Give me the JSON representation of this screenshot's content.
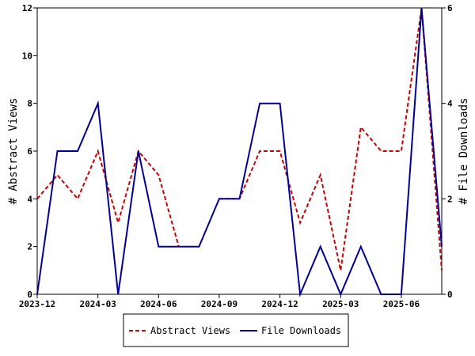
{
  "chart_data": {
    "type": "line",
    "x": [
      "2023-12",
      "2024-01",
      "2024-02",
      "2024-03",
      "2024-04",
      "2024-05",
      "2024-06",
      "2024-07",
      "2024-08",
      "2024-09",
      "2024-10",
      "2024-11",
      "2024-12",
      "2025-01",
      "2025-02",
      "2025-03",
      "2025-04",
      "2025-05",
      "2025-06",
      "2025-07",
      "2025-08"
    ],
    "x_tick_labels": [
      "2023-12",
      "2024-03",
      "2024-06",
      "2024-09",
      "2024-12",
      "2025-03",
      "2025-06"
    ],
    "ylabel": "# Abstract Views",
    "y2label": "# File Downloads",
    "ylim": [
      0,
      12
    ],
    "y_ticks": [
      "0",
      "2",
      "4",
      "6",
      "8",
      "10",
      "12"
    ],
    "y2lim": [
      0,
      6
    ],
    "y2_ticks": [
      "0",
      "2",
      "4",
      "6"
    ],
    "grid": false,
    "legend_position": "bottom-center",
    "series": [
      {
        "name": "Abstract Views",
        "axis": "left",
        "color": "#cc0000",
        "style": "dashed",
        "values": [
          4,
          5,
          4,
          6,
          3,
          6,
          5,
          2,
          null,
          4,
          4,
          6,
          6,
          3,
          5,
          1,
          7,
          6,
          6,
          12,
          1
        ]
      },
      {
        "name": "File Downloads",
        "axis": "right",
        "color": "#000099",
        "style": "solid",
        "values": [
          0,
          3,
          3,
          4,
          0,
          3,
          1,
          1,
          1,
          2,
          2,
          4,
          4,
          0,
          1,
          0,
          1,
          0,
          0,
          6,
          1
        ]
      }
    ]
  }
}
